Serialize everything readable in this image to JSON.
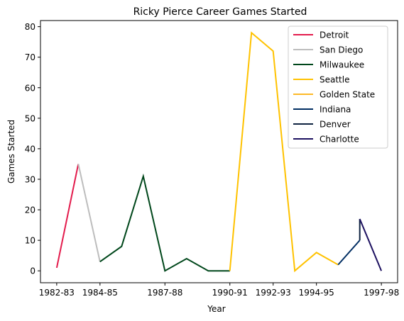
{
  "chart_data": {
    "type": "line",
    "title": "Ricky Pierce Career Games Started",
    "xlabel": "Year",
    "ylabel": "Games Started",
    "x_tick_labels": [
      "1982-83",
      "1984-85",
      "1987-88",
      "1990-91",
      "1992-93",
      "1994-95",
      "1997-98"
    ],
    "x_tick_index": [
      0,
      2,
      5,
      8,
      10,
      12,
      15
    ],
    "y_ticks": [
      0,
      10,
      20,
      30,
      40,
      50,
      60,
      70,
      80
    ],
    "xlim": [
      -0.75,
      15.75
    ],
    "ylim": [
      -3.9,
      82
    ],
    "grid": false,
    "legend_position": "top-right",
    "series": [
      {
        "name": "Detroit",
        "color": "#e31b4c",
        "x": [
          0,
          1
        ],
        "y": [
          1,
          35
        ]
      },
      {
        "name": "San Diego",
        "color": "#bdbdbd",
        "x": [
          1,
          2
        ],
        "y": [
          35,
          3
        ]
      },
      {
        "name": "Milwaukee",
        "color": "#00471b",
        "x": [
          2,
          3,
          4,
          5,
          6,
          7,
          8
        ],
        "y": [
          3,
          8,
          31,
          0,
          4,
          0,
          0
        ]
      },
      {
        "name": "Seattle",
        "color": "#ffc200",
        "x": [
          8,
          9,
          10,
          11,
          12,
          13
        ],
        "y": [
          0,
          78,
          72,
          0,
          6,
          2
        ]
      },
      {
        "name": "Golden State",
        "color": "#fdb927",
        "x": [],
        "y": []
      },
      {
        "name": "Indiana",
        "color": "#002d62",
        "x": [
          13,
          14
        ],
        "y": [
          2,
          10
        ]
      },
      {
        "name": "Denver",
        "color": "#0e2240",
        "x": [
          14,
          14
        ],
        "y": [
          10,
          17
        ]
      },
      {
        "name": "Charlotte",
        "color": "#1d1160",
        "x": [
          14,
          15
        ],
        "y": [
          17,
          0
        ]
      }
    ]
  }
}
